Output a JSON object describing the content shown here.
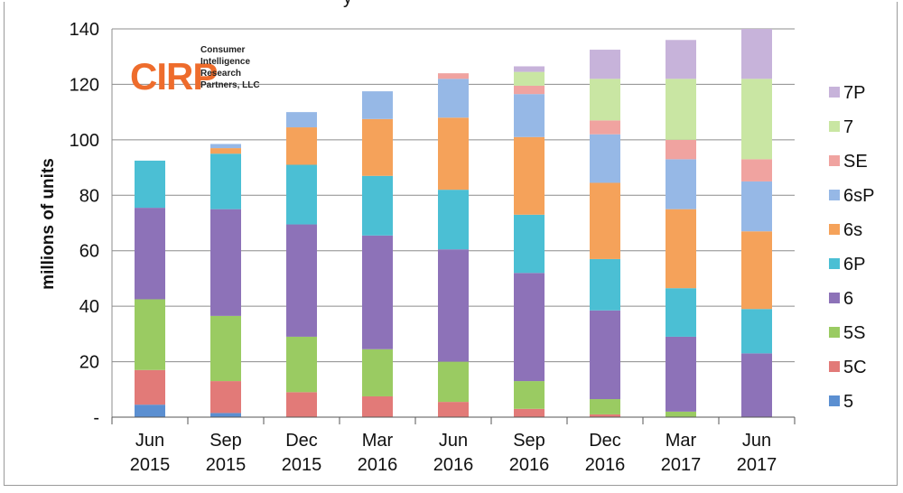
{
  "logo": {
    "mark": "CIRP",
    "lines": [
      "Consumer",
      "Intelligence",
      "Research",
      "Partners, LLC"
    ]
  },
  "chart_data": {
    "type": "bar",
    "stacked": true,
    "title": "",
    "xlabel": "",
    "ylabel": "millions of units",
    "ylim": [
      0,
      140
    ],
    "yticks": [
      "-",
      "20",
      "40",
      "60",
      "80",
      "100",
      "120",
      "140"
    ],
    "categories": [
      [
        "Jun",
        "2015"
      ],
      [
        "Sep",
        "2015"
      ],
      [
        "Dec",
        "2015"
      ],
      [
        "Mar",
        "2016"
      ],
      [
        "Jun",
        "2016"
      ],
      [
        "Sep",
        "2016"
      ],
      [
        "Dec",
        "2016"
      ],
      [
        "Mar",
        "2017"
      ],
      [
        "Jun",
        "2017"
      ]
    ],
    "grid": true,
    "legend_position": "right",
    "series": [
      {
        "name": "5",
        "color": "#5b8fd1",
        "values": [
          4.5,
          1.5,
          0,
          0,
          0,
          0,
          0,
          0,
          0
        ]
      },
      {
        "name": "5C",
        "color": "#e27a78",
        "values": [
          12.5,
          11.5,
          9,
          7.5,
          5.5,
          3,
          1,
          0,
          0
        ]
      },
      {
        "name": "5S",
        "color": "#9acb62",
        "values": [
          25.5,
          23.5,
          20,
          17,
          14.5,
          10,
          5.5,
          2,
          0
        ]
      },
      {
        "name": "6",
        "color": "#8d72b8",
        "values": [
          33,
          38.5,
          40.5,
          41,
          40.5,
          39,
          32,
          27,
          23
        ]
      },
      {
        "name": "6P",
        "color": "#4bbfd4",
        "values": [
          17,
          20,
          21.5,
          21.5,
          21.5,
          21,
          18.5,
          17.5,
          16
        ]
      },
      {
        "name": "6s",
        "color": "#f5a25a",
        "values": [
          0,
          2,
          13.5,
          20.5,
          26,
          28,
          27.5,
          28.5,
          28
        ]
      },
      {
        "name": "6sP",
        "color": "#96b8e6",
        "values": [
          0,
          1.5,
          5.5,
          10,
          14,
          15.5,
          17.5,
          18,
          18
        ]
      },
      {
        "name": "SE",
        "color": "#f0a3a0",
        "values": [
          0,
          0,
          0,
          0,
          2,
          3,
          5,
          7,
          8
        ]
      },
      {
        "name": "7",
        "color": "#c9e6a3",
        "values": [
          0,
          0,
          0,
          0,
          0,
          5,
          15,
          22,
          29
        ]
      },
      {
        "name": "7P",
        "color": "#c7b3da",
        "values": [
          0,
          0,
          0,
          0,
          0,
          2,
          10.5,
          14,
          18
        ]
      }
    ]
  }
}
